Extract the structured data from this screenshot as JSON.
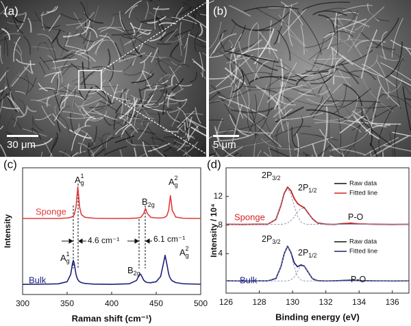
{
  "panels": {
    "a": {
      "label": "(a)",
      "scale_bar": "30 μm"
    },
    "b": {
      "label": "(b)",
      "scale_bar": "5 μm"
    }
  },
  "chart_data": [
    {
      "type": "line",
      "panel_label": "(c)",
      "xlabel": "Raman shift (cm⁻¹)",
      "ylabel": "Intensity",
      "x": [
        300,
        320,
        340,
        350,
        354,
        356,
        357,
        358,
        360,
        361,
        362,
        363,
        364,
        366,
        370,
        380,
        400,
        420,
        428,
        431,
        432,
        433,
        436,
        438,
        440,
        444,
        450,
        455,
        458,
        460,
        462,
        464,
        465,
        466,
        467,
        468,
        472,
        480,
        500
      ],
      "xlim": [
        300,
        500
      ],
      "xticks": [
        300,
        350,
        400,
        450,
        500
      ],
      "ylim": [
        0,
        10
      ],
      "series": [
        {
          "name": "Sponge",
          "color": "#e03a3a",
          "values": [
            6.0,
            6.0,
            6.0,
            6.04,
            6.09,
            6.15,
            6.21,
            6.31,
            6.9,
            7.74,
            8.5,
            7.74,
            6.9,
            6.31,
            6.09,
            6.02,
            6.0,
            6.01,
            6.03,
            6.06,
            6.08,
            6.11,
            6.4,
            6.8,
            6.4,
            6.09,
            6.04,
            6.04,
            6.06,
            6.11,
            6.22,
            6.65,
            7.25,
            7.8,
            7.25,
            6.65,
            6.11,
            6.02,
            6.0
          ]
        },
        {
          "name": "Bulk",
          "color": "#1c1f7a",
          "values": [
            0.8,
            0.81,
            0.84,
            1.01,
            1.58,
            2.44,
            2.7,
            2.44,
            1.58,
            1.33,
            1.18,
            1.08,
            1.01,
            0.94,
            0.87,
            0.82,
            0.8,
            0.85,
            1.11,
            1.54,
            1.63,
            1.55,
            1.13,
            1.0,
            0.95,
            0.93,
            1.01,
            1.42,
            2.4,
            3.1,
            2.4,
            1.63,
            1.41,
            1.26,
            1.16,
            1.08,
            0.94,
            0.85,
            0.81
          ]
        }
      ],
      "peak_labels": [
        {
          "base": "A",
          "sub": "g",
          "sup": "1"
        },
        {
          "base": "B",
          "sub": "2g"
        },
        {
          "base": "A",
          "sub": "g",
          "sup": "2"
        },
        {
          "base": "A",
          "sub": "g",
          "sup": "1"
        },
        {
          "base": "B",
          "sub": "2g"
        },
        {
          "base": "A",
          "sub": "g",
          "sup": "2"
        }
      ],
      "shift_labels": [
        "4.6 cm⁻¹",
        "6.1 cm⁻¹"
      ]
    },
    {
      "type": "line",
      "panel_label": "(d)",
      "xlabel": "Binding energy (eV)",
      "ylabel": "Intensity / 10⁴",
      "x": [
        126,
        127,
        128,
        128.5,
        129,
        129.3,
        129.5,
        129.7,
        129.9,
        130.1,
        130.3,
        130.5,
        130.7,
        130.9,
        131.2,
        131.5,
        132,
        132.5,
        133,
        133.5,
        134,
        135,
        136,
        137
      ],
      "xlim": [
        126,
        137
      ],
      "xticks": [
        126,
        128,
        130,
        132,
        134,
        136
      ],
      "ylim": [
        -1.5,
        16
      ],
      "yticks": [
        4,
        8,
        12
      ],
      "legend": "upper right",
      "series": [
        {
          "name": "Raw data",
          "color": "#111111",
          "values": [
            8.12,
            8.08,
            8.13,
            8.1,
            8.8,
            10.75,
            12.45,
            13.3,
            12.8,
            11.7,
            11.02,
            10.68,
            10.45,
            9.8,
            8.88,
            8.3,
            8.13,
            8.08,
            8.2,
            8.27,
            8.15,
            8.12,
            8.08,
            8.11
          ]
        },
        {
          "name": "Fitted line",
          "color": "#d42424",
          "values": [
            8.1,
            8.1,
            8.1,
            8.11,
            8.78,
            10.71,
            12.4,
            13.28,
            12.85,
            11.75,
            10.99,
            10.7,
            10.41,
            9.85,
            8.85,
            8.28,
            8.1,
            8.1,
            8.17,
            8.25,
            8.17,
            8.1,
            8.1,
            8.1
          ]
        },
        {
          "color": "#8c8cb4",
          "style": "dashed",
          "values": [
            8.1,
            8.1,
            8.1,
            8.11,
            8.78,
            10.7,
            12.35,
            13.1,
            12.35,
            10.7,
            9.25,
            8.47,
            8.18,
            8.11,
            8.1,
            8.1,
            8.1,
            8.1,
            8.1,
            8.1,
            8.1,
            8.1,
            8.1,
            8.1
          ]
        },
        {
          "color": "#8c8cb4",
          "style": "dashed",
          "values": [
            8.1,
            8.1,
            8.1,
            8.1,
            8.1,
            8.11,
            8.15,
            8.28,
            8.6,
            9.15,
            9.84,
            10.33,
            10.33,
            9.84,
            8.85,
            8.28,
            8.1,
            8.1,
            8.1,
            8.1,
            8.1,
            8.1,
            8.1,
            8.1
          ]
        },
        {
          "name": "Raw data",
          "color": "#111111",
          "values": [
            0.22,
            0.18,
            0.21,
            0.2,
            0.55,
            2.2,
            4.0,
            5.05,
            4.15,
            2.75,
            2.17,
            2.45,
            2.28,
            1.57,
            0.52,
            0.24,
            0.19,
            0.22,
            0.27,
            0.31,
            0.23,
            0.21,
            0.19,
            0.2
          ]
        },
        {
          "name": "Fitted line",
          "color": "#1c237e",
          "values": [
            0.2,
            0.2,
            0.2,
            0.2,
            0.52,
            2.17,
            4.04,
            5.02,
            4.19,
            2.72,
            2.19,
            2.42,
            2.3,
            1.54,
            0.5,
            0.22,
            0.2,
            0.2,
            0.25,
            0.3,
            0.25,
            0.2,
            0.2,
            0.2
          ]
        },
        {
          "color": "#8c8cb4",
          "style": "dashed",
          "values": [
            0.2,
            0.2,
            0.2,
            0.2,
            0.52,
            2.17,
            4.04,
            5.0,
            4.04,
            2.17,
            0.85,
            0.34,
            0.22,
            0.2,
            0.2,
            0.2,
            0.2,
            0.2,
            0.2,
            0.2,
            0.2,
            0.2,
            0.2,
            0.2
          ]
        },
        {
          "color": "#8c8cb4",
          "style": "dashed",
          "values": [
            0.2,
            0.2,
            0.2,
            0.2,
            0.2,
            0.2,
            0.2,
            0.22,
            0.35,
            0.75,
            1.54,
            2.28,
            2.28,
            1.54,
            0.5,
            0.22,
            0.2,
            0.2,
            0.2,
            0.2,
            0.2,
            0.2,
            0.2,
            0.2
          ]
        }
      ],
      "group_labels": [
        "Sponge",
        "Bulk"
      ],
      "peak_labels": [
        {
          "base": "2P",
          "sub": "3/2"
        },
        {
          "base": "2P",
          "sub": "1/2"
        },
        {
          "base": "P-O"
        },
        {
          "base": "2P",
          "sub": "3/2"
        },
        {
          "base": "2P",
          "sub": "1/2"
        },
        {
          "base": "P-O"
        }
      ]
    }
  ]
}
